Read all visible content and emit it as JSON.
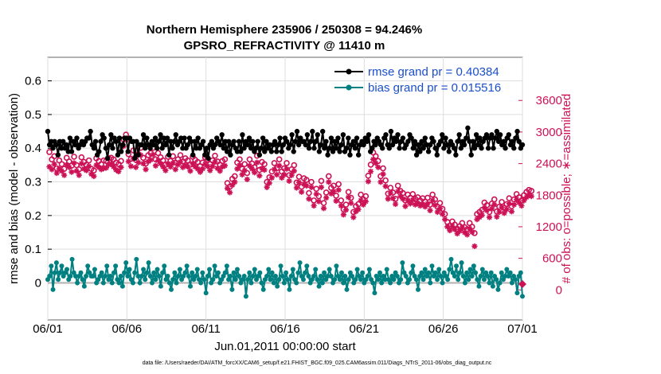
{
  "chart_data": {
    "type": "line",
    "title": "Northern Hemisphere 235906 / 250308 = 94.246%",
    "subtitle": "GPSRO_REFRACTIVITY @ 11410 m",
    "xlabel": "Jun.01,2011 00:00:00 start",
    "ylabel": "rmse and bias (model - observation)",
    "y2label": "# of obs: o=possible; ∗=assimilated",
    "footnote": "data file: /Users/raeder/DAI/ATM_forcXX/CAM6_setup/f.e21.FHIST_BGC.f09_025.CAM6assim.011/Diags_NTrS_2011-06/obs_diag_output.nc",
    "xlim": [
      0,
      30
    ],
    "ylim": [
      -0.11,
      0.67
    ],
    "y2lim": [
      -570,
      4420
    ],
    "x_ticks": [
      0,
      5,
      10,
      15,
      20,
      25,
      30
    ],
    "x_tick_labels": [
      "06/01",
      "06/06",
      "06/11",
      "06/16",
      "06/21",
      "06/26",
      "07/01"
    ],
    "y_ticks": [
      0,
      0.1,
      0.2,
      0.3,
      0.4,
      0.5,
      0.6
    ],
    "y_tick_labels": [
      "0",
      "0.1",
      "0.2",
      "0.3",
      "0.4",
      "0.5",
      "0.6"
    ],
    "y2_ticks": [
      0,
      600,
      1200,
      1800,
      2400,
      3000,
      3600
    ],
    "y2_tick_labels": [
      "0",
      "600",
      "1200",
      "1800",
      "2400",
      "3000",
      "3600"
    ],
    "grid": true,
    "legend_position": "top-right",
    "colors": {
      "rmse": "#000000",
      "bias": "#008080",
      "obs": "#cc1155",
      "zero": "#b0b0b0",
      "grid": "#dddddd"
    },
    "series": [
      {
        "name": "rmse grand pr = 0.40384",
        "color": "#000000",
        "marker": "star",
        "values": [
          0.45,
          0.41,
          0.42,
          0.4,
          0.42,
          0.41,
          0.38,
          0.42,
          0.4,
          0.42,
          0.4,
          0.41,
          0.39,
          0.43,
          0.39,
          0.42,
          0.41,
          0.43,
          0.4,
          0.41,
          0.42,
          0.41,
          0.42,
          0.43,
          0.43,
          0.45,
          0.41,
          0.4,
          0.42,
          0.38,
          0.39,
          0.42,
          0.44,
          0.43,
          0.4,
          0.37,
          0.41,
          0.44,
          0.4,
          0.43,
          0.42,
          0.38,
          0.43,
          0.39,
          0.41,
          0.43,
          0.43,
          0.39,
          0.43,
          0.42,
          0.42,
          0.37,
          0.42,
          0.38,
          0.41,
          0.41,
          0.44,
          0.4,
          0.43,
          0.41,
          0.4,
          0.42,
          0.41,
          0.43,
          0.4,
          0.42,
          0.44,
          0.4,
          0.43,
          0.41,
          0.43,
          0.38,
          0.42,
          0.4,
          0.42,
          0.44,
          0.41,
          0.42,
          0.43,
          0.4,
          0.43,
          0.4,
          0.41,
          0.43,
          0.42,
          0.38,
          0.42,
          0.4,
          0.43,
          0.4,
          0.41,
          0.42,
          0.38,
          0.4,
          0.37,
          0.41,
          0.42,
          0.4,
          0.41,
          0.43,
          0.42,
          0.41,
          0.44,
          0.4,
          0.42,
          0.39,
          0.42,
          0.38,
          0.41,
          0.42,
          0.4,
          0.39,
          0.42,
          0.39,
          0.44,
          0.4,
          0.42,
          0.41,
          0.43,
          0.4,
          0.42,
          0.39,
          0.4,
          0.42,
          0.38,
          0.4,
          0.43,
          0.39,
          0.42,
          0.4,
          0.41,
          0.39,
          0.41,
          0.42,
          0.39,
          0.41,
          0.43,
          0.39,
          0.41,
          0.43,
          0.42,
          0.4,
          0.41,
          0.44,
          0.39,
          0.42,
          0.45,
          0.41,
          0.43,
          0.42,
          0.42,
          0.41,
          0.44,
          0.4,
          0.42,
          0.45,
          0.4,
          0.42,
          0.44,
          0.39,
          0.41,
          0.45,
          0.4,
          0.42,
          0.38,
          0.4,
          0.43,
          0.39,
          0.42,
          0.4,
          0.43,
          0.39,
          0.41,
          0.44,
          0.39,
          0.4,
          0.43,
          0.38,
          0.41,
          0.42,
          0.4,
          0.43,
          0.38,
          0.41,
          0.42,
          0.41,
          0.43,
          0.42,
          0.44,
          0.39,
          0.4,
          0.42,
          0.41,
          0.43,
          0.42,
          0.41,
          0.4,
          0.43,
          0.44,
          0.41,
          0.4,
          0.45,
          0.41,
          0.43,
          0.42,
          0.44,
          0.4,
          0.42,
          0.43,
          0.4,
          0.41,
          0.42,
          0.44,
          0.43,
          0.4,
          0.42,
          0.38,
          0.41,
          0.39,
          0.42,
          0.4,
          0.43,
          0.41,
          0.39,
          0.41,
          0.43,
          0.42,
          0.4,
          0.38,
          0.41,
          0.42,
          0.44,
          0.4,
          0.43,
          0.41,
          0.39,
          0.42,
          0.41,
          0.4,
          0.38,
          0.42,
          0.44,
          0.4,
          0.42,
          0.41,
          0.43,
          0.46,
          0.42,
          0.38,
          0.42,
          0.4,
          0.44,
          0.41,
          0.43,
          0.4,
          0.42,
          0.43,
          0.44,
          0.4,
          0.43,
          0.44,
          0.4,
          0.43,
          0.45,
          0.42,
          0.44,
          0.41,
          0.42,
          0.4,
          0.43,
          0.44,
          0.41,
          0.42,
          0.4,
          0.43,
          0.45,
          0.42,
          0.4,
          0.41
        ]
      },
      {
        "name": "bias grand pr = 0.015516",
        "color": "#008080",
        "marker": "dot",
        "values": [
          0.01,
          0.02,
          0.05,
          -0.02,
          0.03,
          0.06,
          0.01,
          0.03,
          0.05,
          0.02,
          0.03,
          0.04,
          0.01,
          0.02,
          0.07,
          0.03,
          0.02,
          0.0,
          0.02,
          0.03,
          0.01,
          -0.01,
          0.02,
          0.05,
          0.03,
          0.02,
          0.02,
          0.04,
          0.0,
          0.01,
          0.02,
          0.03,
          0.0,
          0.02,
          0.05,
          0.01,
          0.02,
          0.0,
          0.03,
          0.05,
          0.01,
          0.0,
          0.02,
          -0.01,
          0.03,
          0.06,
          0.02,
          0.04,
          0.01,
          0.0,
          0.03,
          0.07,
          0.02,
          0.0,
          0.02,
          0.04,
          0.01,
          0.03,
          0.06,
          0.02,
          0.0,
          0.03,
          0.01,
          0.04,
          0.02,
          -0.01,
          0.03,
          0.05,
          0.01,
          0.02,
          0.0,
          -0.02,
          0.01,
          0.03,
          0.0,
          0.02,
          0.04,
          0.01,
          0.02,
          0.03,
          0.05,
          0.02,
          -0.01,
          0.03,
          0.01,
          0.02,
          0.04,
          0.01,
          0.0,
          0.03,
          0.01,
          -0.03,
          0.02,
          0.04,
          0.0,
          0.01,
          0.05,
          0.02,
          0.03,
          0.0,
          0.01,
          0.02,
          0.03,
          0.05,
          0.01,
          0.02,
          -0.02,
          0.03,
          0.01,
          0.04,
          0.02,
          0.0,
          0.01,
          0.02,
          -0.04,
          0.01,
          0.03,
          0.0,
          0.02,
          0.04,
          0.01,
          0.02,
          0.03,
          0.0,
          -0.02,
          0.01,
          0.02,
          0.04,
          0.01,
          0.03,
          0.0,
          0.02,
          -0.01,
          0.01,
          0.05,
          0.02,
          0.0,
          0.03,
          0.01,
          -0.02,
          0.02,
          0.04,
          0.01,
          0.0,
          0.03,
          0.06,
          0.02,
          0.01,
          0.03,
          0.05,
          0.02,
          0.0,
          0.01,
          0.02,
          0.04,
          0.01,
          -0.01,
          0.02,
          0.0,
          0.03,
          0.01,
          0.02,
          0.04,
          0.02,
          0.0,
          0.01,
          0.05,
          0.02,
          0.01,
          0.03,
          0.0,
          0.02,
          -0.02,
          0.01,
          0.03,
          0.02,
          0.0,
          0.01,
          0.04,
          0.02,
          0.01,
          0.03,
          0.0,
          0.01,
          0.02,
          0.04,
          0.01,
          0.0,
          -0.03,
          0.02,
          0.01,
          0.03,
          0.0,
          0.02,
          0.01,
          0.04,
          0.01,
          0.0,
          0.02,
          0.01,
          0.03,
          0.02,
          0.0,
          0.01,
          0.06,
          0.03,
          0.02,
          0.0,
          0.01,
          0.03,
          0.05,
          0.02,
          0.01,
          -0.02,
          0.02,
          0.03,
          0.01,
          0.04,
          0.02,
          0.03,
          0.0,
          0.05,
          0.02,
          0.03,
          0.01,
          0.04,
          0.02,
          0.0,
          0.03,
          0.02,
          0.01,
          0.04,
          0.07,
          0.03,
          0.02,
          0.05,
          0.01,
          0.03,
          0.06,
          0.02,
          0.0,
          0.03,
          0.01,
          0.04,
          0.02,
          0.05,
          0.03,
          0.01,
          -0.01,
          0.02,
          0.04,
          0.01,
          0.03,
          0.02,
          0.0,
          0.03,
          -0.01,
          0.02,
          0.01,
          -0.02,
          0.0,
          0.03,
          0.01,
          0.02,
          0.04,
          0.02,
          0.03,
          0.0,
          0.02,
          0.01,
          -0.03,
          0.02,
          0.03,
          -0.04
        ]
      },
      {
        "name": "possible obs (o)",
        "color": "#cc1155",
        "marker": "circle",
        "axis": "right",
        "values": [
          2620,
          2480,
          2540,
          2310,
          2460,
          2390,
          2300,
          2510,
          2440,
          2360,
          2530,
          2370,
          2290,
          2520,
          2430,
          2380,
          2460,
          2300,
          2270,
          2500,
          2450,
          2390,
          2460,
          2450,
          2500,
          2510,
          2480,
          2420,
          2390,
          2450,
          2860,
          2950,
          2580,
          2490,
          2650,
          2470,
          2580,
          2700,
          2510,
          2400,
          2560,
          2600,
          2700,
          2480,
          2600,
          2520,
          2460,
          2380,
          2530,
          2450,
          2540,
          2420,
          2480,
          2560,
          2440,
          2500,
          2460,
          2380,
          2530,
          2470,
          2430,
          2350,
          2420,
          2520,
          2480,
          2390,
          2460,
          2550,
          2440,
          2380,
          2450,
          2480,
          2030,
          1960,
          2110,
          2160,
          2420,
          2480,
          2300,
          2390,
          2220,
          2480,
          2400,
          2330,
          2550,
          2280,
          2430,
          2390,
          2050,
          2140,
          2250,
          2410,
          2310,
          2480,
          2250,
          2310,
          2410,
          2180,
          2290,
          2370,
          2040,
          2150,
          1960,
          2120,
          2090,
          1840,
          2050,
          1700,
          1920,
          1780,
          2070,
          1650,
          1850,
          2160,
          1940,
          1980,
          1790,
          2010,
          1700,
          1530,
          1620,
          1860,
          1750,
          1480,
          1590,
          1630,
          1810,
          1720,
          1780,
          2170,
          2380,
          2610,
          2540,
          2450,
          2160,
          2310,
          2080,
          1830,
          1940,
          1850,
          1730,
          1980,
          1880,
          1840,
          1700,
          1810,
          1750,
          1820,
          1730,
          1760,
          1700,
          1740,
          1680,
          1750,
          1620,
          1810,
          1720,
          1580,
          1650,
          1540,
          1440,
          1290,
          1220,
          1300,
          1240,
          1160,
          1210,
          1270,
          1190,
          1150,
          1270,
          1200,
          1080,
          1440,
          1480,
          1520,
          1660,
          1610,
          1480,
          1640,
          1720,
          1490,
          1580,
          1670,
          1560,
          1630,
          1740,
          1590,
          1720,
          1820,
          1760,
          1700,
          1800,
          1860,
          1900,
          1880
        ],
        "x_from_index": true
      },
      {
        "name": "assimilated obs (∗)",
        "color": "#cc1155",
        "marker": "asterisk",
        "axis": "right",
        "values": [
          2340,
          2290,
          2390,
          2220,
          2300,
          2260,
          2180,
          2380,
          2330,
          2240,
          2410,
          2260,
          2180,
          2400,
          2300,
          2270,
          2350,
          2200,
          2160,
          2370,
          2330,
          2290,
          2310,
          2320,
          2380,
          2400,
          2340,
          2280,
          2250,
          2330,
          2730,
          2850,
          2440,
          2350,
          2500,
          2330,
          2420,
          2560,
          2400,
          2290,
          2440,
          2470,
          2570,
          2360,
          2460,
          2400,
          2340,
          2270,
          2400,
          2340,
          2410,
          2290,
          2380,
          2430,
          2330,
          2370,
          2340,
          2260,
          2400,
          2340,
          2300,
          2240,
          2300,
          2390,
          2350,
          2270,
          2350,
          2430,
          2310,
          2260,
          2340,
          2360,
          1930,
          1850,
          1990,
          2050,
          2300,
          2370,
          2190,
          2270,
          2100,
          2360,
          2300,
          2230,
          2420,
          2170,
          2310,
          2280,
          1950,
          2030,
          2130,
          2290,
          2190,
          2360,
          2130,
          2190,
          2300,
          2070,
          2180,
          2260,
          1940,
          2040,
          1860,
          2010,
          1980,
          1730,
          1950,
          1600,
          1820,
          1680,
          1950,
          1550,
          1750,
          2050,
          1830,
          1870,
          1690,
          1900,
          1600,
          1430,
          1520,
          1760,
          1650,
          1380,
          1490,
          1530,
          1700,
          1620,
          1680,
          2060,
          2250,
          2480,
          2410,
          2330,
          2050,
          2200,
          1970,
          1730,
          1840,
          1740,
          1630,
          1870,
          1780,
          1730,
          1590,
          1700,
          1640,
          1710,
          1620,
          1650,
          1600,
          1630,
          1580,
          1640,
          1510,
          1700,
          1610,
          1480,
          1550,
          1440,
          1340,
          1200,
          1130,
          1210,
          1150,
          1070,
          1120,
          1180,
          1090,
          1050,
          1170,
          1100,
          830,
          1340,
          1380,
          1420,
          1560,
          1510,
          1380,
          1540,
          1620,
          1390,
          1480,
          1570,
          1460,
          1530,
          1640,
          1490,
          1620,
          1720,
          1660,
          1600,
          1700,
          1760,
          1800,
          1780
        ],
        "x_from_index": true
      }
    ],
    "obs_x_step_days": 0.15625,
    "rmse_x_step_days": 0.10714
  }
}
